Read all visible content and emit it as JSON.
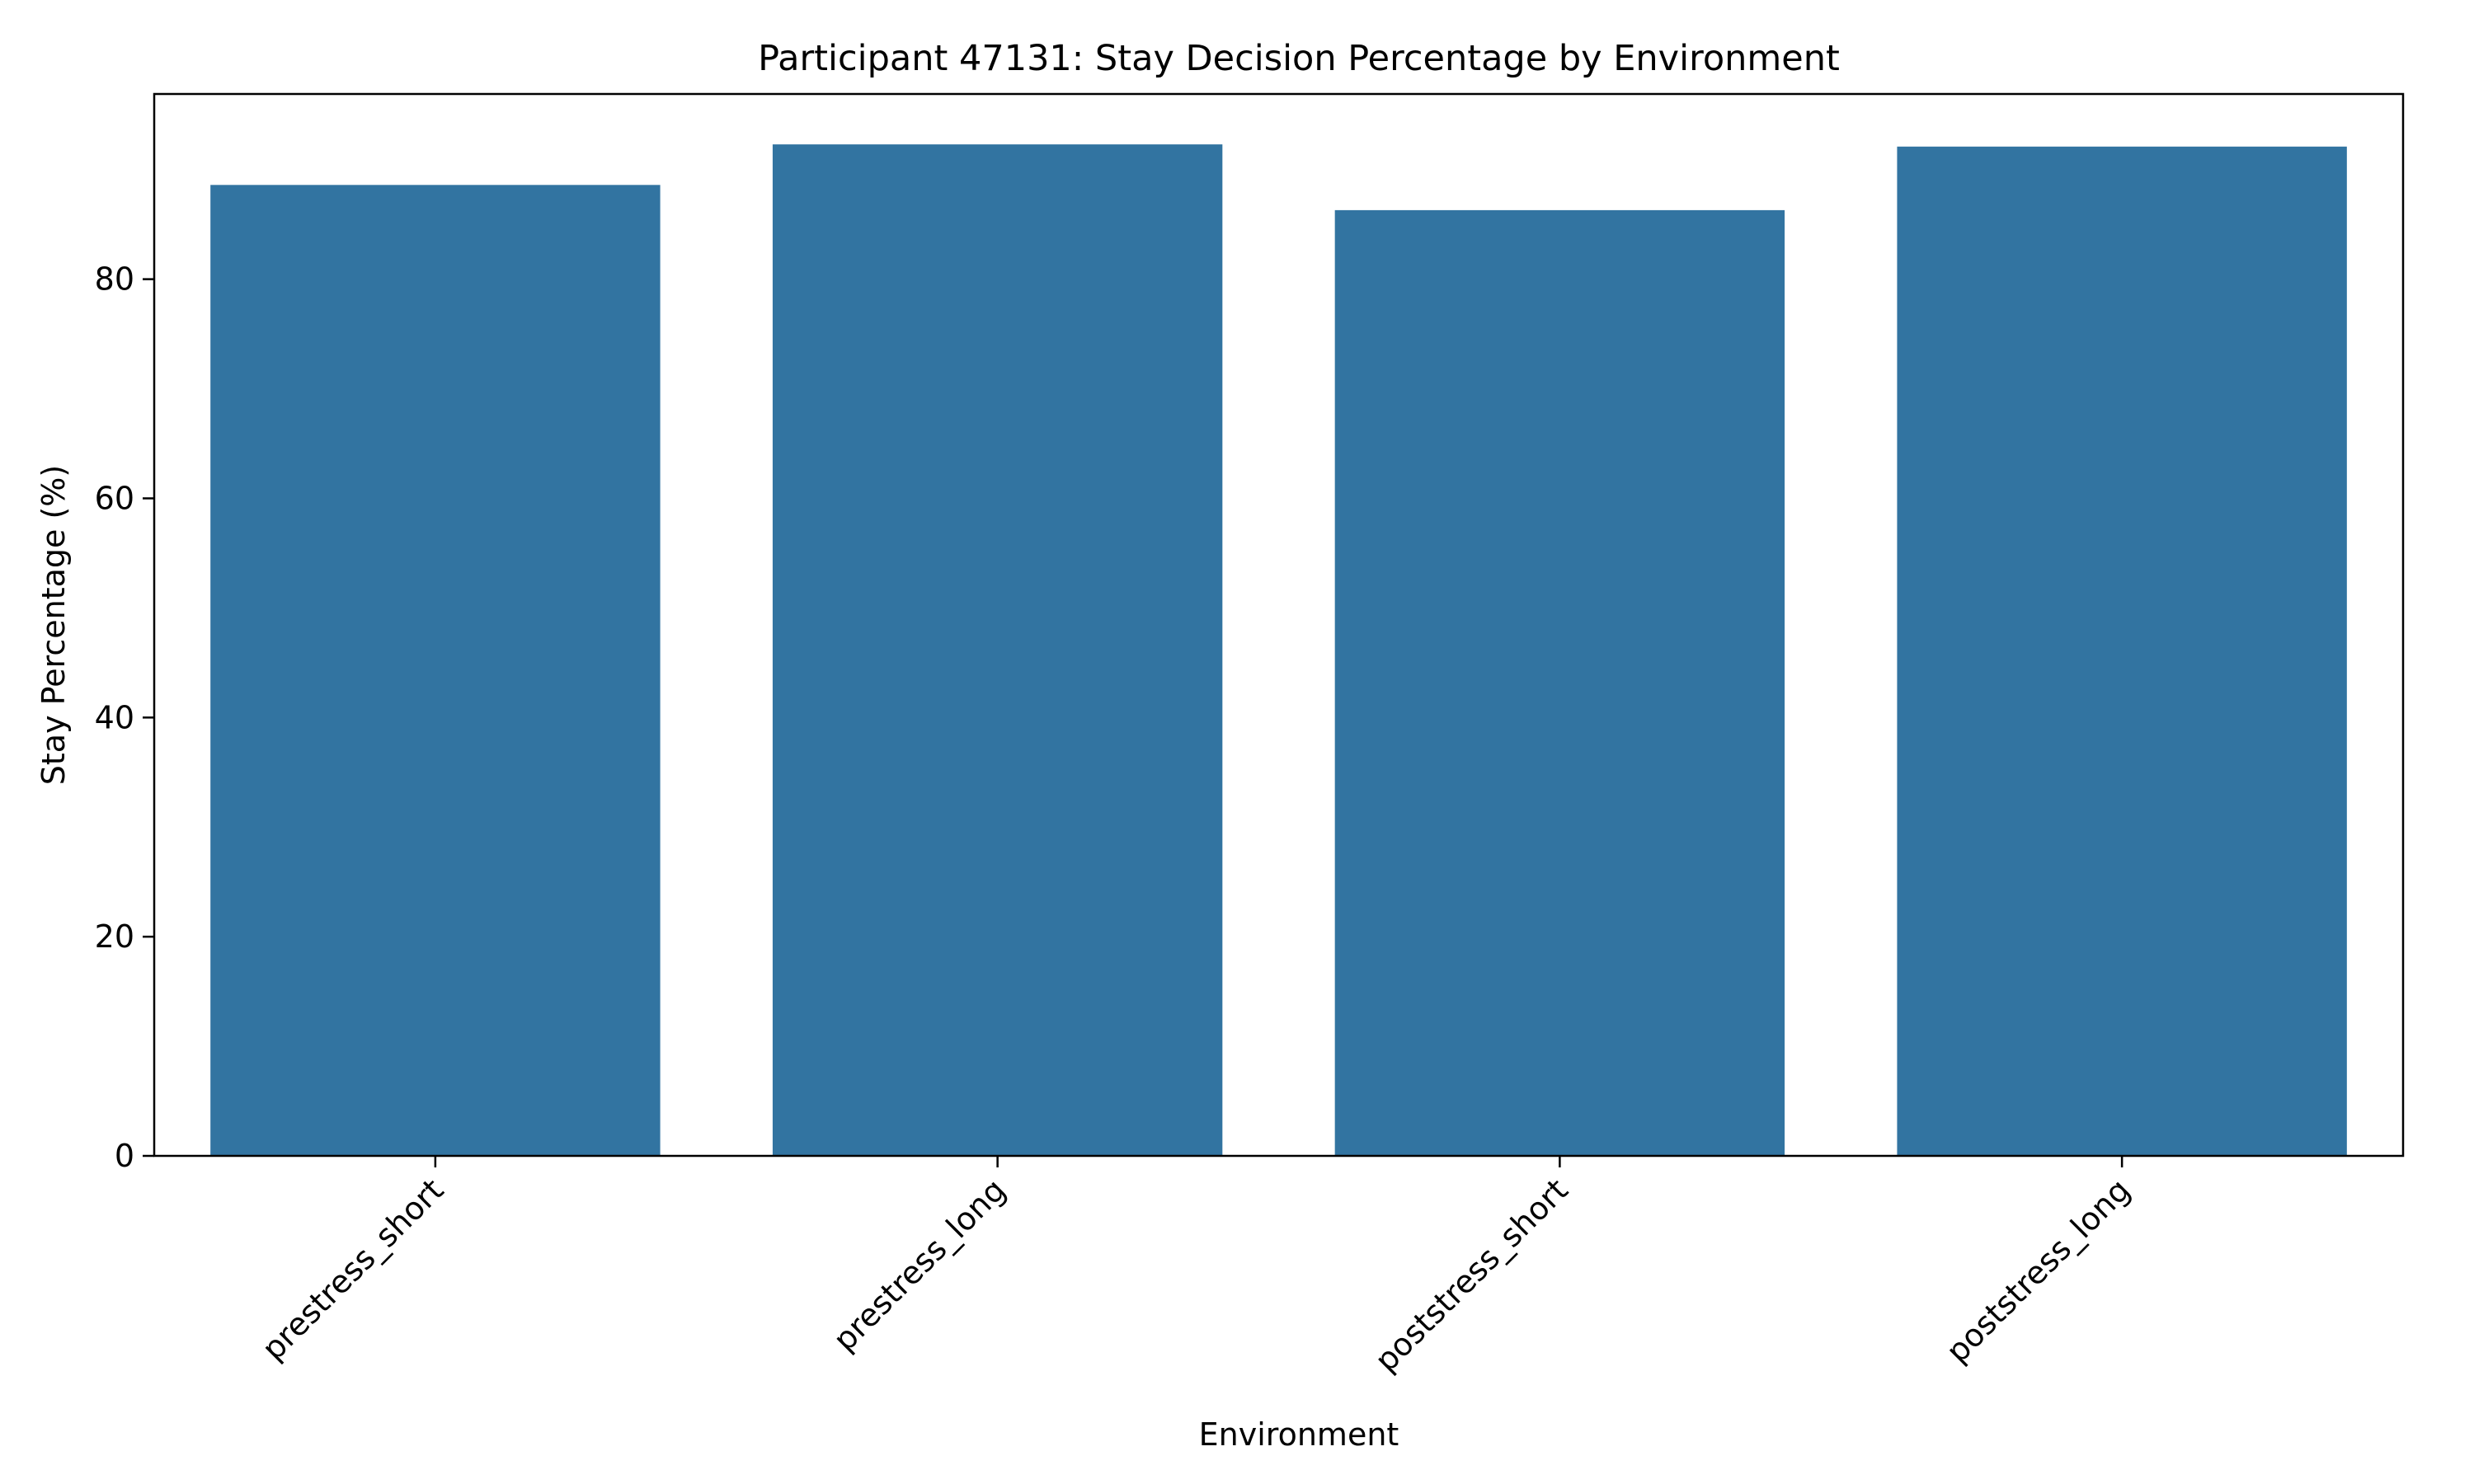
{
  "chart_data": {
    "type": "bar",
    "title": "Participant 47131: Stay Decision Percentage by Environment",
    "xlabel": "Environment",
    "ylabel": "Stay Percentage (%)",
    "categories": [
      "prestress_short",
      "prestress_long",
      "poststress_short",
      "poststress_long"
    ],
    "values": [
      88.6,
      92.3,
      86.3,
      92.1
    ],
    "ylim": [
      0,
      96.9
    ],
    "yticks": [
      0,
      20,
      40,
      60,
      80
    ],
    "ytick_labels": [
      "0",
      "20",
      "40",
      "60",
      "80"
    ],
    "grid": false,
    "legend": "none",
    "colors": {
      "bar": "#3274a1",
      "axes": "#000000",
      "background": "#ffffff"
    }
  }
}
